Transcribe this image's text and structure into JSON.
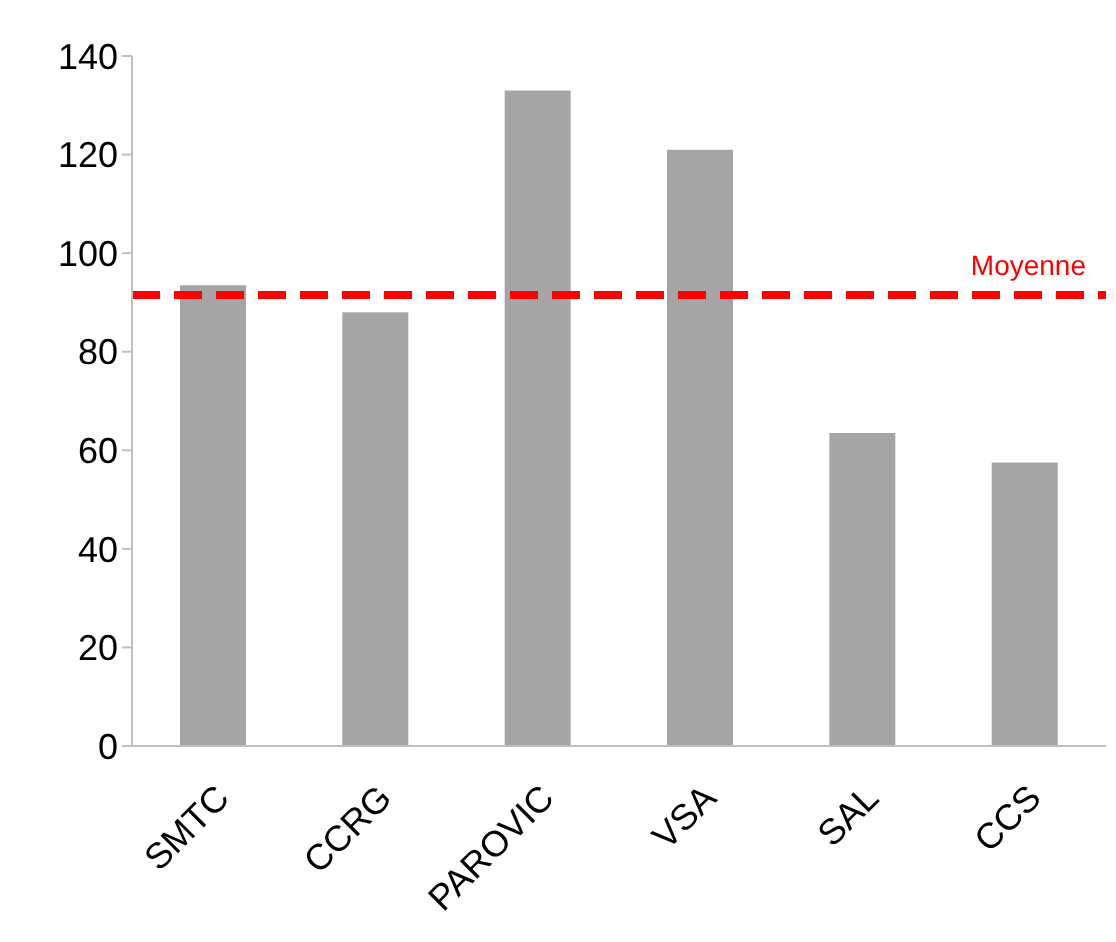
{
  "chart_data": {
    "type": "bar",
    "categories": [
      "SMTC",
      "CCRG",
      "PAROVIC",
      "VSA",
      "SAL",
      "CCS"
    ],
    "series": [
      {
        "color": "#a5a5a5",
        "values": [
          93.5,
          88,
          133,
          121,
          63.5,
          57.5
        ]
      }
    ],
    "ylim": [
      0,
      140
    ],
    "yticks": [
      0,
      20,
      40,
      60,
      80,
      100,
      120,
      140
    ],
    "grid": false,
    "legend": false,
    "ref_lines": [
      {
        "axis": "y",
        "value": 91.5,
        "label": "Moyenne",
        "color": "#ff0000",
        "line_style": "dashed"
      }
    ]
  }
}
